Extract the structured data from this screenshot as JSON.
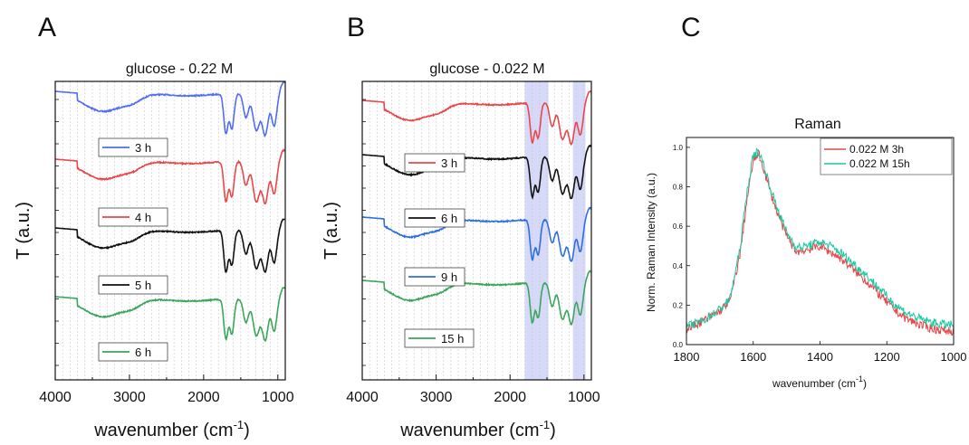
{
  "colors": {
    "blue": "#4f6df5",
    "red": "#e8474b",
    "black": "#111111",
    "green": "#3aa65a",
    "blue_b": "#2e6fe0",
    "raman_red": "#e8474b",
    "raman_green": "#18c9a0",
    "highlight": "#c9ccf5"
  },
  "chart_data": [
    {
      "panel": "A",
      "type": "line",
      "title": "glucose - 0.22 M",
      "xlabel": "wavenumber (cm",
      "xlabel_sup": "-1",
      "xlabel_close": ")",
      "ylabel": "T (a.u.)",
      "xlim": [
        4000,
        900
      ],
      "x_reversed": true,
      "x_ticks": [
        "4000",
        "3000",
        "2000",
        "1000"
      ],
      "grid": "vertical dashed",
      "series": [
        {
          "name": "3 h",
          "color_key": "blue"
        },
        {
          "name": "4 h",
          "color_key": "red"
        },
        {
          "name": "5 h",
          "color_key": "black"
        },
        {
          "name": "6 h",
          "color_key": "green"
        }
      ]
    },
    {
      "panel": "B",
      "type": "line",
      "title": "glucose - 0.022 M",
      "xlabel": "wavenumber (cm",
      "xlabel_sup": "-1",
      "xlabel_close": ")",
      "ylabel": "T (a.u.)",
      "xlim": [
        4000,
        900
      ],
      "x_reversed": true,
      "x_ticks": [
        "4000",
        "3000",
        "2000",
        "1000"
      ],
      "grid": "vertical dashed",
      "highlight_bands": [
        [
          1800,
          1480
        ],
        [
          1150,
          980
        ]
      ],
      "series": [
        {
          "name": "3 h",
          "color_key": "red"
        },
        {
          "name": "6 h",
          "color_key": "black"
        },
        {
          "name": "9 h",
          "color_key": "blue_b"
        },
        {
          "name": "15 h",
          "color_key": "green"
        }
      ]
    },
    {
      "panel": "C",
      "type": "line",
      "title": "Raman",
      "xlabel": "wavenumber (cm",
      "xlabel_sup": "-1",
      "xlabel_close": ")",
      "ylabel": "Norm. Raman Intensity (a.u.)",
      "xlim": [
        1800,
        1000
      ],
      "ylim": [
        0.0,
        1.05
      ],
      "x_reversed": true,
      "x_ticks": [
        "1800",
        "1600",
        "1400",
        "1200",
        "1000"
      ],
      "y_ticks": [
        "0.0",
        "0.2",
        "0.4",
        "0.6",
        "0.8",
        "1.0"
      ],
      "legend_position": "top-right",
      "series": [
        {
          "name": "0.022 M 3h",
          "color_key": "raman_red",
          "x": [
            1800,
            1750,
            1700,
            1670,
            1640,
            1620,
            1600,
            1585,
            1570,
            1550,
            1530,
            1500,
            1470,
            1440,
            1400,
            1370,
            1340,
            1300,
            1260,
            1220,
            1180,
            1140,
            1100,
            1060,
            1020,
            1000
          ],
          "y": [
            0.08,
            0.12,
            0.17,
            0.22,
            0.45,
            0.72,
            0.93,
            0.97,
            0.9,
            0.78,
            0.68,
            0.55,
            0.47,
            0.48,
            0.5,
            0.47,
            0.44,
            0.38,
            0.32,
            0.25,
            0.18,
            0.13,
            0.1,
            0.08,
            0.07,
            0.07
          ]
        },
        {
          "name": "0.022 M 15h",
          "color_key": "raman_green",
          "x": [
            1800,
            1750,
            1700,
            1670,
            1640,
            1620,
            1600,
            1585,
            1570,
            1550,
            1530,
            1500,
            1470,
            1440,
            1400,
            1370,
            1340,
            1300,
            1260,
            1220,
            1180,
            1140,
            1100,
            1060,
            1020,
            1000
          ],
          "y": [
            0.09,
            0.12,
            0.18,
            0.23,
            0.48,
            0.76,
            0.96,
            0.98,
            0.92,
            0.8,
            0.7,
            0.57,
            0.49,
            0.5,
            0.52,
            0.5,
            0.47,
            0.41,
            0.35,
            0.28,
            0.21,
            0.16,
            0.13,
            0.11,
            0.1,
            0.1
          ]
        }
      ]
    }
  ]
}
